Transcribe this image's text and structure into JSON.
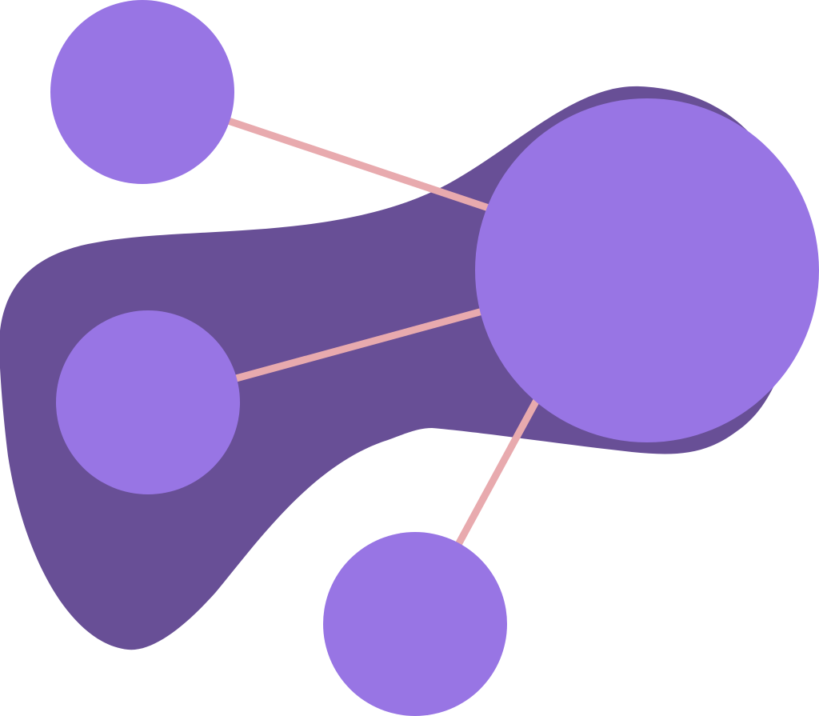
{
  "illustration": {
    "description_visible_text": "",
    "colors": {
      "background": "#ffffff",
      "blob": "#684F96",
      "node": "#9875E4",
      "edge": "#E8AAAE"
    },
    "nodes": [
      {
        "name": "hub-node",
        "icon": "network-hub-circle"
      },
      {
        "name": "top-left-node",
        "icon": "network-node-circle"
      },
      {
        "name": "left-node",
        "icon": "network-node-circle"
      },
      {
        "name": "bottom-node",
        "icon": "network-node-circle"
      }
    ],
    "edges": [
      {
        "from": "hub-node",
        "to": "top-left-node"
      },
      {
        "from": "hub-node",
        "to": "left-node"
      },
      {
        "from": "hub-node",
        "to": "bottom-node"
      }
    ]
  }
}
